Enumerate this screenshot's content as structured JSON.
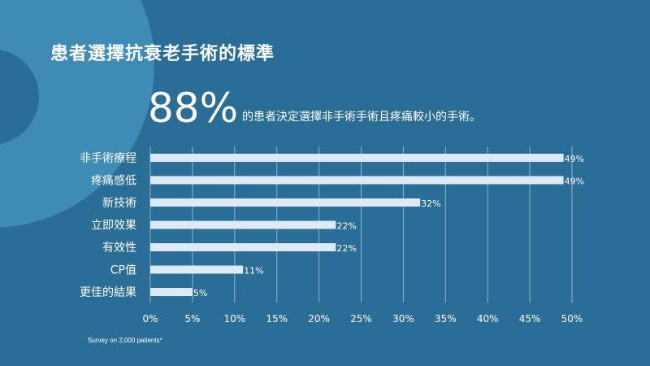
{
  "title": "患者選擇抗衰老手術的標準",
  "highlight": {
    "value": "88%",
    "text": "的患者決定選擇非手術手術且疼痛較小的手術。"
  },
  "footnote": "Survey on 2,000 patients*",
  "colors": {
    "background": "#2a6d96",
    "decor": "#3e8cb6",
    "bar": "#dce9f7",
    "grid": "#8fb5cf",
    "text": "#ffffff"
  },
  "chart_data": {
    "type": "bar",
    "orientation": "horizontal",
    "categories": [
      "非手術療程",
      "疼痛感低",
      "新技術",
      "立即效果",
      "有效性",
      "CP值",
      "更佳的結果"
    ],
    "values": [
      49,
      49,
      32,
      22,
      22,
      11,
      5
    ],
    "value_labels": [
      "49%",
      "49%",
      "32%",
      "22%",
      "22%",
      "11%",
      "5%"
    ],
    "xlim": [
      0,
      50
    ],
    "xticks": [
      "0%",
      "5%",
      "10%",
      "15%",
      "20%",
      "25%",
      "30%",
      "35%",
      "40%",
      "45%",
      "50%"
    ],
    "grid": true
  }
}
